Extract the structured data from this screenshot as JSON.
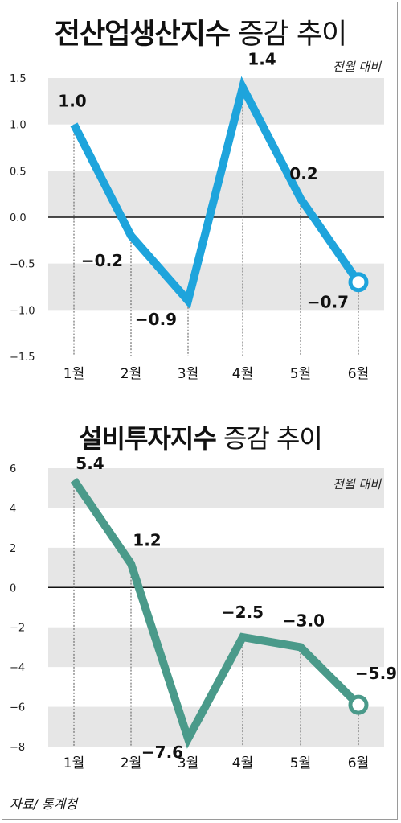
{
  "chart_data": [
    {
      "type": "line",
      "title": "전산업생산지수",
      "title_suffix": "증감 추이",
      "unit_note": "전월 대비",
      "categories": [
        "1월",
        "2월",
        "3월",
        "4월",
        "5월",
        "6월"
      ],
      "values": [
        1.0,
        -0.2,
        -0.9,
        1.4,
        0.2,
        -0.7
      ],
      "value_labels": [
        "1.0",
        "−0.2",
        "−0.9",
        "1.4",
        "0.2",
        "−0.7"
      ],
      "ylim": [
        -1.5,
        1.5
      ],
      "yticks": [
        1.5,
        1.0,
        0.5,
        0.0,
        -0.5,
        -1.0,
        -1.5
      ],
      "ytick_labels": [
        "1.5",
        "1.0",
        "0.5",
        "0.0",
        "−0.5",
        "−1.0",
        "−1.5"
      ],
      "color": "#1ea4dc",
      "grid_bands": true
    },
    {
      "type": "line",
      "title": "설비투자지수",
      "title_suffix": "증감 추이",
      "unit_note": "전월 대비",
      "categories": [
        "1월",
        "2월",
        "3월",
        "4월",
        "5월",
        "6월"
      ],
      "values": [
        5.4,
        1.2,
        -7.6,
        -2.5,
        -3.0,
        -5.9
      ],
      "value_labels": [
        "5.4",
        "1.2",
        "−7.6",
        "−2.5",
        "−3.0",
        "−5.9"
      ],
      "ylim": [
        -8,
        6
      ],
      "yticks": [
        6,
        4,
        2,
        0,
        -2,
        -4,
        -6,
        -8
      ],
      "ytick_labels": [
        "6",
        "4",
        "2",
        "0",
        "−2",
        "−4",
        "−6",
        "−8"
      ],
      "color": "#4a9a8a",
      "grid_bands": true
    }
  ],
  "source": "자료/ 통계청",
  "colors": {
    "band": "#e6e6e6",
    "zero_line": "#111111",
    "text": "#111111"
  }
}
